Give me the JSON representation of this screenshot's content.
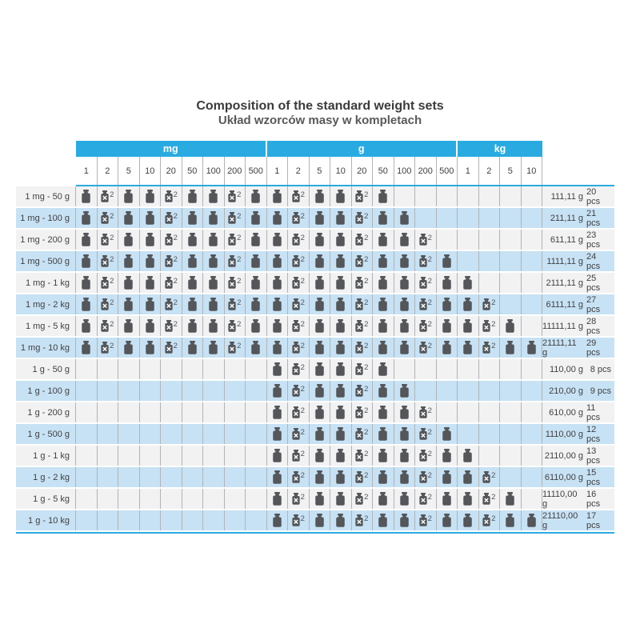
{
  "title": "Composition of the standard weight sets",
  "subtitle": "Układ wzorców masy w kompletach",
  "x2_suffix": "2",
  "pcs_unit": "pcs",
  "colors": {
    "accent_blue": "#29abe2",
    "row_light_blue": "#c7e2f4",
    "row_light_gray": "#f2f2f3",
    "icon_dark_gray": "#54565a",
    "divider_gray": "#b1b3b6",
    "text_dark": "#414042",
    "subtitle_gray": "#58595b"
  },
  "chart_data": {
    "type": "table",
    "title": "Composition of the standard weight sets",
    "subtitle": "Układ wzorców masy w kompletach",
    "unit_groups": [
      {
        "label": "mg",
        "columns": 9
      },
      {
        "label": "g",
        "columns": 9
      },
      {
        "label": "kg",
        "columns": 4
      }
    ],
    "column_headers": [
      "1",
      "2",
      "5",
      "10",
      "20",
      "50",
      "100",
      "200",
      "500",
      "1",
      "2",
      "5",
      "10",
      "20",
      "50",
      "100",
      "200",
      "500",
      "1",
      "2",
      "5",
      "10"
    ],
    "cell_encoding": {
      "0": "empty",
      "1": "one weight piece",
      "2": "two weight pieces (x2 icon)"
    },
    "rows": [
      {
        "label": "1 mg - 50 g",
        "cells": [
          1,
          2,
          1,
          1,
          2,
          1,
          1,
          2,
          1,
          1,
          2,
          1,
          1,
          2,
          1,
          0,
          0,
          0,
          0,
          0,
          0,
          0
        ],
        "total_mass": "111,11 g",
        "total_pcs": "20 pcs"
      },
      {
        "label": "1 mg - 100 g",
        "cells": [
          1,
          2,
          1,
          1,
          2,
          1,
          1,
          2,
          1,
          1,
          2,
          1,
          1,
          2,
          1,
          1,
          0,
          0,
          0,
          0,
          0,
          0
        ],
        "total_mass": "211,11 g",
        "total_pcs": "21 pcs"
      },
      {
        "label": "1 mg - 200 g",
        "cells": [
          1,
          2,
          1,
          1,
          2,
          1,
          1,
          2,
          1,
          1,
          2,
          1,
          1,
          2,
          1,
          1,
          2,
          0,
          0,
          0,
          0,
          0
        ],
        "total_mass": "611,11 g",
        "total_pcs": "23 pcs"
      },
      {
        "label": "1 mg - 500 g",
        "cells": [
          1,
          2,
          1,
          1,
          2,
          1,
          1,
          2,
          1,
          1,
          2,
          1,
          1,
          2,
          1,
          1,
          2,
          1,
          0,
          0,
          0,
          0
        ],
        "total_mass": "1111,11 g",
        "total_pcs": "24 pcs"
      },
      {
        "label": "1 mg - 1 kg",
        "cells": [
          1,
          2,
          1,
          1,
          2,
          1,
          1,
          2,
          1,
          1,
          2,
          1,
          1,
          2,
          1,
          1,
          2,
          1,
          1,
          0,
          0,
          0
        ],
        "total_mass": "2111,11 g",
        "total_pcs": "25 pcs"
      },
      {
        "label": "1 mg - 2 kg",
        "cells": [
          1,
          2,
          1,
          1,
          2,
          1,
          1,
          2,
          1,
          1,
          2,
          1,
          1,
          2,
          1,
          1,
          2,
          1,
          1,
          2,
          0,
          0
        ],
        "total_mass": "6111,11 g",
        "total_pcs": "27 pcs"
      },
      {
        "label": "1 mg - 5 kg",
        "cells": [
          1,
          2,
          1,
          1,
          2,
          1,
          1,
          2,
          1,
          1,
          2,
          1,
          1,
          2,
          1,
          1,
          2,
          1,
          1,
          2,
          1,
          0
        ],
        "total_mass": "11111,11 g",
        "total_pcs": "28 pcs"
      },
      {
        "label": "1 mg - 10 kg",
        "cells": [
          1,
          2,
          1,
          1,
          2,
          1,
          1,
          2,
          1,
          1,
          2,
          1,
          1,
          2,
          1,
          1,
          2,
          1,
          1,
          2,
          1,
          1
        ],
        "total_mass": "21111,11 g",
        "total_pcs": "29 pcs"
      },
      {
        "label": "1 g - 50 g",
        "cells": [
          0,
          0,
          0,
          0,
          0,
          0,
          0,
          0,
          0,
          1,
          2,
          1,
          1,
          2,
          1,
          0,
          0,
          0,
          0,
          0,
          0,
          0
        ],
        "total_mass": "110,00 g",
        "total_pcs": "8 pcs"
      },
      {
        "label": "1 g - 100 g",
        "cells": [
          0,
          0,
          0,
          0,
          0,
          0,
          0,
          0,
          0,
          1,
          2,
          1,
          1,
          2,
          1,
          1,
          0,
          0,
          0,
          0,
          0,
          0
        ],
        "total_mass": "210,00 g",
        "total_pcs": "9 pcs"
      },
      {
        "label": "1 g - 200 g",
        "cells": [
          0,
          0,
          0,
          0,
          0,
          0,
          0,
          0,
          0,
          1,
          2,
          1,
          1,
          2,
          1,
          1,
          2,
          0,
          0,
          0,
          0,
          0
        ],
        "total_mass": "610,00 g",
        "total_pcs": "11 pcs"
      },
      {
        "label": "1 g - 500 g",
        "cells": [
          0,
          0,
          0,
          0,
          0,
          0,
          0,
          0,
          0,
          1,
          2,
          1,
          1,
          2,
          1,
          1,
          2,
          1,
          0,
          0,
          0,
          0
        ],
        "total_mass": "1110,00 g",
        "total_pcs": "12 pcs"
      },
      {
        "label": "1 g - 1 kg",
        "cells": [
          0,
          0,
          0,
          0,
          0,
          0,
          0,
          0,
          0,
          1,
          2,
          1,
          1,
          2,
          1,
          1,
          2,
          1,
          1,
          0,
          0,
          0
        ],
        "total_mass": "2110,00 g",
        "total_pcs": "13 pcs"
      },
      {
        "label": "1 g - 2 kg",
        "cells": [
          0,
          0,
          0,
          0,
          0,
          0,
          0,
          0,
          0,
          1,
          2,
          1,
          1,
          2,
          1,
          1,
          2,
          1,
          1,
          2,
          0,
          0
        ],
        "total_mass": "6110,00 g",
        "total_pcs": "15 pcs"
      },
      {
        "label": "1 g - 5 kg",
        "cells": [
          0,
          0,
          0,
          0,
          0,
          0,
          0,
          0,
          0,
          1,
          2,
          1,
          1,
          2,
          1,
          1,
          2,
          1,
          1,
          2,
          1,
          0
        ],
        "total_mass": "11110,00 g",
        "total_pcs": "16 pcs"
      },
      {
        "label": "1 g - 10 kg",
        "cells": [
          0,
          0,
          0,
          0,
          0,
          0,
          0,
          0,
          0,
          1,
          2,
          1,
          1,
          2,
          1,
          1,
          2,
          1,
          1,
          2,
          1,
          1
        ],
        "total_mass": "21110,00 g",
        "total_pcs": "17 pcs"
      }
    ]
  }
}
